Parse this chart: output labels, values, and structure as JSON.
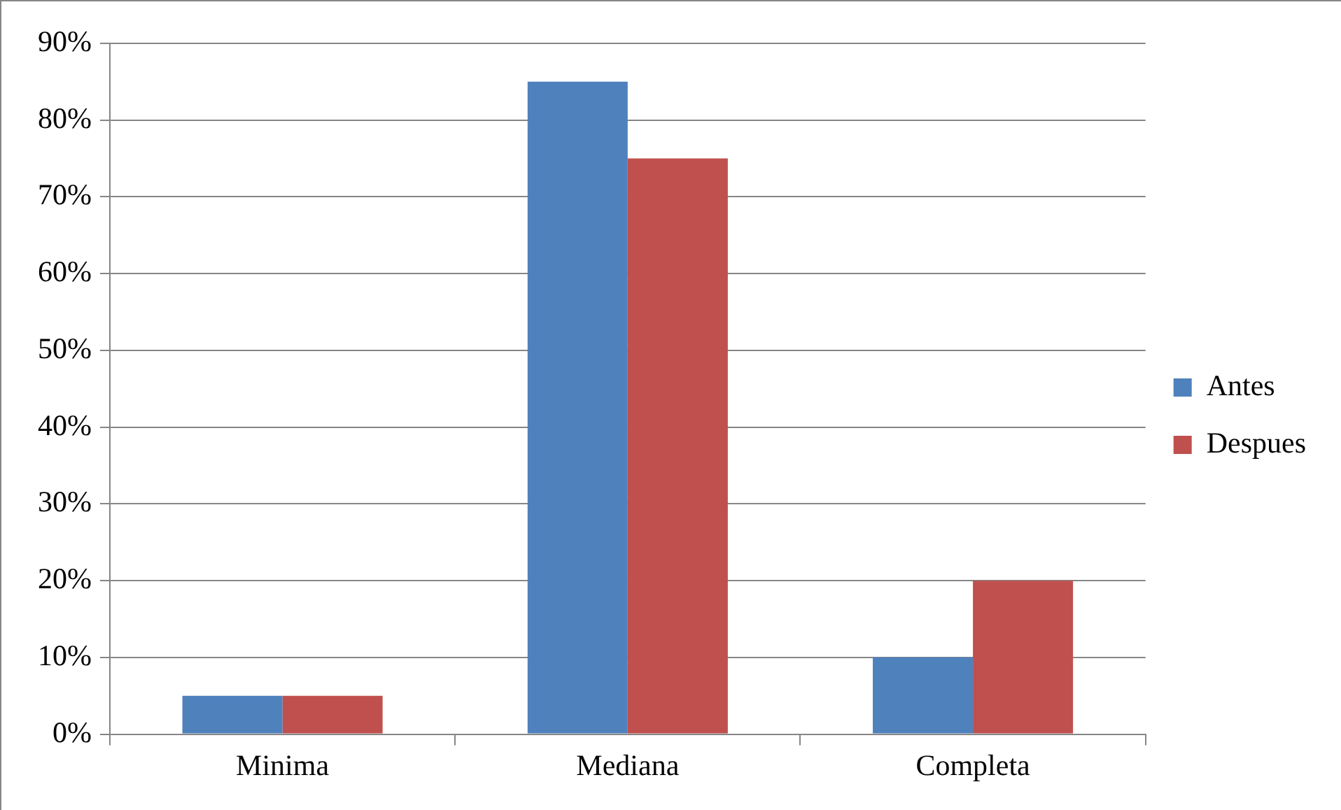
{
  "chart_data": {
    "type": "bar",
    "categories": [
      "Minima",
      "Mediana",
      "Completa"
    ],
    "series": [
      {
        "name": "Antes",
        "color": "#4f81bd",
        "values": [
          5,
          85,
          10
        ]
      },
      {
        "name": "Despues",
        "color": "#c0504d",
        "values": [
          5,
          75,
          20
        ]
      }
    ],
    "ylim": [
      0,
      90
    ],
    "yticks": [
      {
        "value": 0,
        "label": "0%"
      },
      {
        "value": 10,
        "label": "10%"
      },
      {
        "value": 20,
        "label": "20%"
      },
      {
        "value": 30,
        "label": "30%"
      },
      {
        "value": 40,
        "label": "40%"
      },
      {
        "value": 50,
        "label": "50%"
      },
      {
        "value": 60,
        "label": "60%"
      },
      {
        "value": 70,
        "label": "70%"
      },
      {
        "value": 80,
        "label": "80%"
      },
      {
        "value": 90,
        "label": "90%"
      }
    ],
    "grid": "y",
    "legend": "right"
  }
}
